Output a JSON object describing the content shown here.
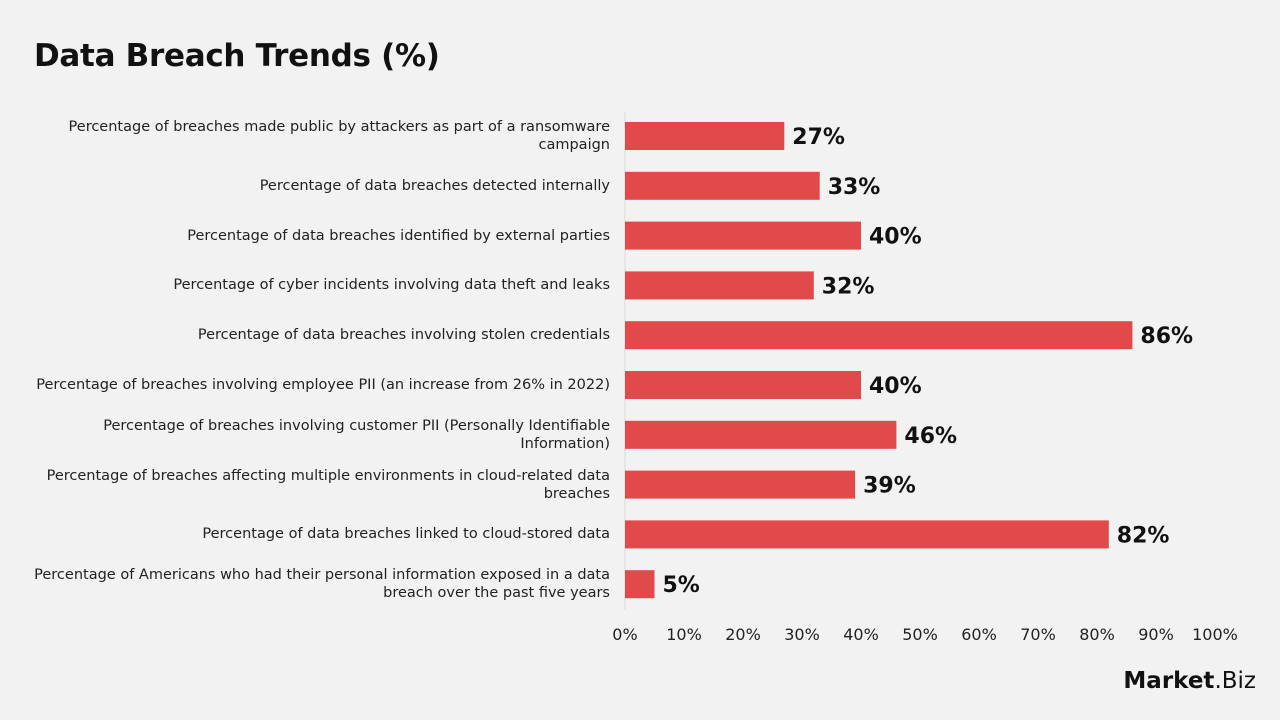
{
  "chart_data": {
    "type": "bar",
    "orientation": "horizontal",
    "title": "Data Breach Trends (%)",
    "categories": [
      "Percentage of breaches made public by attackers as part of a ransomware campaign",
      "Percentage of data breaches detected internally",
      "Percentage of data breaches identified by external parties",
      "Percentage of cyber incidents involving data theft and leaks",
      "Percentage of data breaches involving stolen credentials",
      "Percentage of breaches involving employee PII (an increase from 26% in 2022)",
      "Percentage of breaches involving customer PII (Personally Identifiable Information)",
      "Percentage of breaches affecting multiple environments in cloud-related data breaches",
      "Percentage of data breaches linked to cloud-stored data",
      "Percentage of Americans who had their personal information exposed in a data breach over the past five years"
    ],
    "values": [
      27,
      33,
      40,
      32,
      86,
      40,
      46,
      39,
      82,
      5
    ],
    "data_labels": [
      "27%",
      "33%",
      "40%",
      "32%",
      "86%",
      "40%",
      "46%",
      "39%",
      "82%",
      "5%"
    ],
    "xlim": [
      0,
      100
    ],
    "xticks": [
      "0%",
      "10%",
      "20%",
      "30%",
      "40%",
      "50%",
      "60%",
      "70%",
      "80%",
      "90%",
      "100%"
    ],
    "grid": false,
    "bar_color": "#e2494a"
  },
  "logo": {
    "main": "Market",
    "suffix": ".Biz"
  }
}
